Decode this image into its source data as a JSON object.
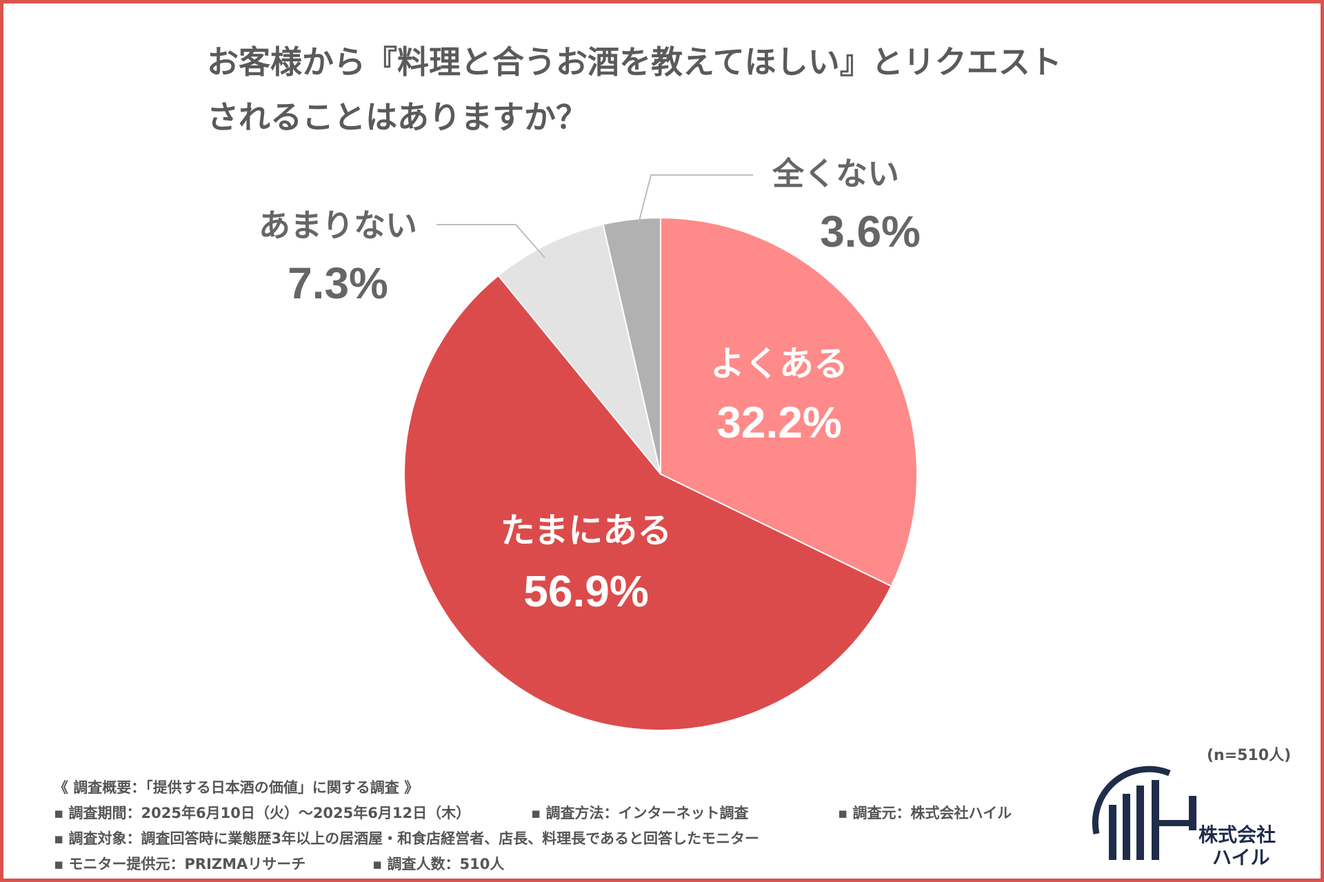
{
  "title": {
    "line1": "お客様から『料理と合うお酒を教えてほしい』とリクエスト",
    "line2": "されることはありますか？"
  },
  "chart_data": {
    "type": "pie",
    "title": "お客様から『料理と合うお酒を教えてほしい』とリクエストされることはありますか？",
    "start": "12 o'clock, clockwise",
    "slices": [
      {
        "label": "よくある",
        "value": 32.2,
        "value_text": "32.2%",
        "color": "#ff8a8a",
        "label_color": "#ffffff"
      },
      {
        "label": "たまにある",
        "value": 56.9,
        "value_text": "56.9%",
        "color": "#dc4b4b",
        "label_color": "#ffffff"
      },
      {
        "label": "あまりない",
        "value": 7.3,
        "value_text": "7.3%",
        "color": "#e3e3e3",
        "label_color": "#666666"
      },
      {
        "label": "全くない",
        "value": 3.6,
        "value_text": "3.6%",
        "color": "#b1b1b1",
        "label_color": "#666666"
      }
    ],
    "sample_note": "(n=510人)"
  },
  "footer": {
    "overview": "《 調査概要：「提供する日本酒の価値」に関する調査 》",
    "period": "▪ 調査期間：2025年6月10日（火）〜2025年6月12日（木）",
    "method": "▪ 調査方法：インターネット調査",
    "source": "▪ 調査元：株式会社ハイル",
    "target": "▪ 調査対象：調査回答時に業態歴3年以上の居酒屋・和食店経営者、店長、料理長であると回答したモニター",
    "provider": "▪ モニター提供元：PRIZMAリサーチ",
    "respondents": "▪ 調査人数：510人"
  },
  "logo": {
    "line1": "株式会社",
    "line2": "ハイル",
    "color": "#1f2d4a"
  }
}
